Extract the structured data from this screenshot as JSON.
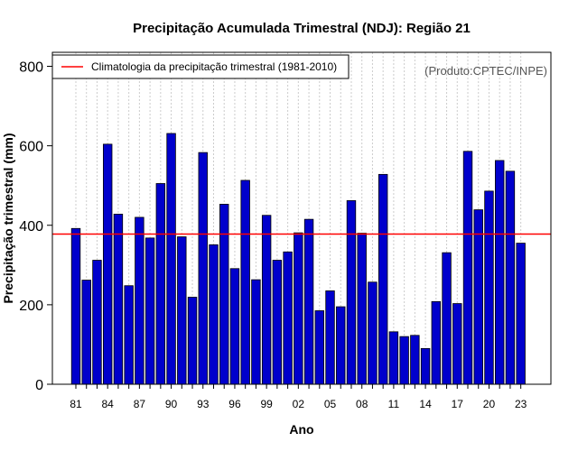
{
  "chart_data": {
    "type": "bar",
    "title": "Precipitação Acumulada Trimestral (NDJ): Região 21",
    "xlabel": "Ano",
    "ylabel": "Precipitação trimestral (mm)",
    "credit": "(Produto:CPTEC/INPE)",
    "ylim": [
      0,
      800
    ],
    "yticks": [
      0,
      200,
      400,
      600,
      800
    ],
    "categories": [
      "81",
      "82",
      "83",
      "84",
      "85",
      "86",
      "87",
      "88",
      "89",
      "90",
      "91",
      "92",
      "93",
      "94",
      "95",
      "96",
      "97",
      "98",
      "99",
      "00",
      "01",
      "02",
      "03",
      "04",
      "05",
      "06",
      "07",
      "08",
      "09",
      "10",
      "11",
      "12",
      "13",
      "14",
      "15",
      "16",
      "17",
      "18",
      "19",
      "20",
      "21",
      "22",
      "23"
    ],
    "x_tick_labels": [
      "81",
      "84",
      "87",
      "90",
      "93",
      "96",
      "99",
      "02",
      "05",
      "08",
      "11",
      "14",
      "17",
      "20",
      "23"
    ],
    "values": [
      392,
      262,
      312,
      604,
      428,
      248,
      420,
      368,
      505,
      631,
      371,
      219,
      583,
      351,
      453,
      291,
      513,
      263,
      425,
      312,
      333,
      381,
      415,
      185,
      235,
      195,
      462,
      380,
      257,
      528,
      132,
      120,
      123,
      90,
      208,
      331,
      203,
      586,
      439,
      486,
      563,
      536,
      355
    ],
    "bar_color": "#0000cc",
    "grid": true,
    "legend": {
      "label": "Climatologia da precipitação trimestral (1981-2010)",
      "position": "top-left"
    },
    "reference_line": {
      "name": "Climatologia da precipitação trimestral (1981-2010)",
      "value": 378,
      "color": "#ff0000"
    }
  }
}
